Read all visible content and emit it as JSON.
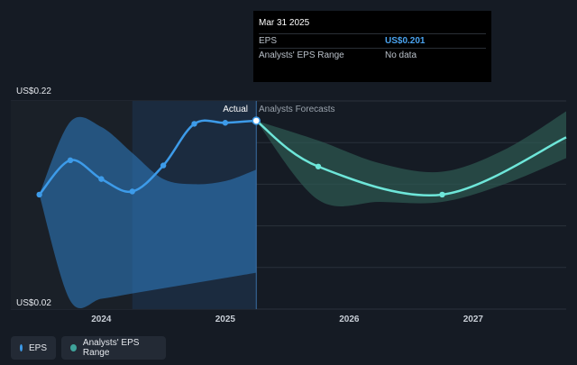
{
  "tooltip": {
    "date": "Mar 31 2025",
    "rows": [
      {
        "label": "EPS",
        "value": "US$0.201"
      },
      {
        "label": "Analysts' EPS Range",
        "value": "No data"
      }
    ]
  },
  "chart_data": {
    "type": "line",
    "ylim": [
      0.02,
      0.22
    ],
    "y_top_label": "US$0.22",
    "y_bottom_label": "US$0.02",
    "x_ticks": [
      {
        "label": "2024",
        "x": 2024.0
      },
      {
        "label": "2025",
        "x": 2025.0
      },
      {
        "label": "2026",
        "x": 2026.0
      },
      {
        "label": "2027",
        "x": 2027.0
      }
    ],
    "xlim": [
      2023.27,
      2027.75
    ],
    "actual_label": "Actual",
    "forecast_label": "Analysts Forecasts",
    "divider_x": 2025.25,
    "highlight_start_x": 2024.25,
    "series": [
      {
        "name": "EPS",
        "color": "#3d9be9",
        "points": [
          [
            2023.5,
            0.13
          ],
          [
            2023.75,
            0.163
          ],
          [
            2024.0,
            0.145
          ],
          [
            2024.25,
            0.133
          ],
          [
            2024.5,
            0.158
          ],
          [
            2024.75,
            0.198
          ],
          [
            2025.0,
            0.199
          ],
          [
            2025.25,
            0.201
          ]
        ]
      },
      {
        "name": "EPS Forecast",
        "color": "#6ee6d9",
        "points": [
          [
            2025.25,
            0.201
          ],
          [
            2025.75,
            0.157
          ],
          [
            2026.75,
            0.13
          ],
          [
            2027.75,
            0.185
          ]
        ]
      }
    ],
    "range_actual": {
      "color": "#2f7fc6",
      "upper": [
        [
          2023.5,
          0.13
        ],
        [
          2023.75,
          0.2
        ],
        [
          2024.0,
          0.195
        ],
        [
          2024.25,
          0.17
        ],
        [
          2024.5,
          0.145
        ],
        [
          2024.75,
          0.14
        ],
        [
          2025.0,
          0.143
        ],
        [
          2025.25,
          0.154
        ]
      ],
      "lower": [
        [
          2023.5,
          0.13
        ],
        [
          2023.75,
          0.028
        ],
        [
          2024.0,
          0.03
        ],
        [
          2024.25,
          0.035
        ],
        [
          2024.5,
          0.04
        ],
        [
          2024.75,
          0.045
        ],
        [
          2025.0,
          0.05
        ],
        [
          2025.25,
          0.055
        ]
      ]
    },
    "range_forecast": {
      "color": "#2e5a52",
      "upper": [
        [
          2025.25,
          0.201
        ],
        [
          2025.75,
          0.182
        ],
        [
          2026.25,
          0.16
        ],
        [
          2026.75,
          0.152
        ],
        [
          2027.25,
          0.173
        ],
        [
          2027.75,
          0.21
        ]
      ],
      "lower": [
        [
          2025.25,
          0.201
        ],
        [
          2025.75,
          0.125
        ],
        [
          2026.25,
          0.123
        ],
        [
          2026.75,
          0.123
        ],
        [
          2027.25,
          0.14
        ],
        [
          2027.75,
          0.165
        ]
      ]
    }
  },
  "legend": [
    {
      "label": "EPS",
      "color": "#3d9be9"
    },
    {
      "label": "Analysts' EPS Range",
      "color": "#3fa39b"
    }
  ]
}
